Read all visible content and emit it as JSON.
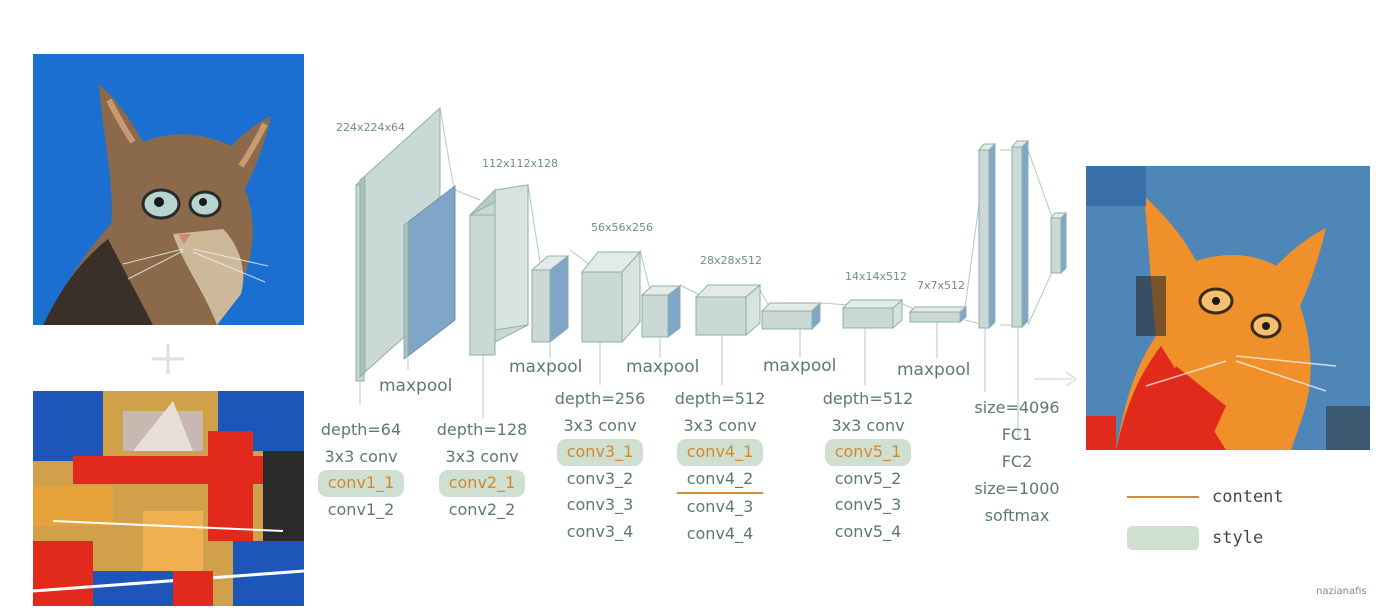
{
  "layers": {
    "dims": [
      "224x224x64",
      "112x112x128",
      "56x56x256",
      "28x28x512",
      "14x14x512",
      "7x7x512"
    ],
    "maxpool_label": "maxpool"
  },
  "blocks": [
    {
      "depth": "depth=64",
      "conv": "3x3 conv",
      "items": [
        "conv1_1",
        "conv1_2"
      ]
    },
    {
      "depth": "depth=128",
      "conv": "3x3 conv",
      "items": [
        "conv2_1",
        "conv2_2"
      ]
    },
    {
      "depth": "depth=256",
      "conv": "3x3 conv",
      "items": [
        "conv3_1",
        "conv3_2",
        "conv3_3",
        "conv3_4"
      ]
    },
    {
      "depth": "depth=512",
      "conv": "3x3 conv",
      "items": [
        "conv4_1",
        "conv4_2",
        "conv4_3",
        "conv4_4"
      ]
    },
    {
      "depth": "depth=512",
      "conv": "3x3 conv",
      "items": [
        "conv5_1",
        "conv5_2",
        "conv5_3",
        "conv5_4"
      ]
    }
  ],
  "fc": [
    "size=4096",
    "FC1",
    "FC2",
    "size=1000",
    "softmax"
  ],
  "legend": {
    "content": "content",
    "style": "style"
  },
  "credit": "nazianafis",
  "colors": {
    "content": "#d98a34",
    "style": "#cfdfd0",
    "layer_fill": "#cad9d5",
    "layer_stroke": "#8fb0a8",
    "photo_bg": "#1a6fd1"
  }
}
